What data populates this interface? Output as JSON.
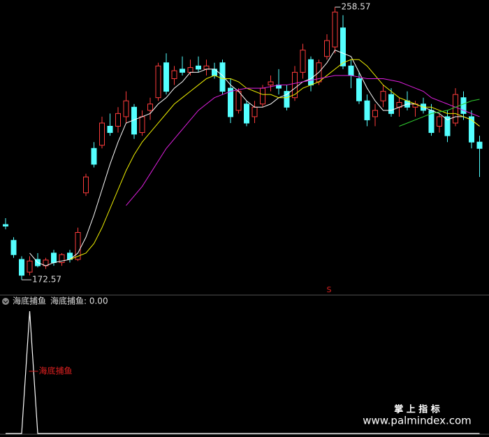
{
  "chart_data": [
    {
      "type": "candlestick",
      "up_color": "#ff3c3c",
      "down_color": "#54ffff",
      "ylim": [
        168.2,
        260.8
      ],
      "open": [
        190,
        185,
        179,
        175,
        179,
        177,
        181,
        178,
        181,
        179,
        200,
        214,
        215,
        221,
        221,
        224,
        227,
        219,
        226,
        230,
        241,
        236,
        239,
        238,
        240,
        239,
        239,
        241,
        233,
        226,
        228,
        224,
        228,
        234,
        234,
        232,
        230,
        238,
        242,
        235,
        243,
        246,
        252,
        240,
        236,
        229,
        224,
        229,
        231,
        227,
        229,
        227,
        228,
        226,
        221,
        224,
        222,
        230,
        224,
        216
      ],
      "high": [
        192,
        186,
        180,
        180,
        181,
        179.5,
        182,
        181,
        182,
        189,
        206,
        216,
        224,
        225,
        227,
        232,
        228,
        226,
        230,
        241,
        244,
        240,
        243,
        242,
        243,
        242,
        241,
        242,
        236,
        233,
        229,
        229,
        234,
        237,
        239,
        234,
        240,
        247,
        243,
        242,
        250,
        258.57,
        256,
        242,
        238,
        231,
        228,
        234,
        233,
        230,
        232,
        229,
        230,
        228,
        225,
        226,
        233,
        232,
        226,
        218
      ],
      "low": [
        188.5,
        179.5,
        172.57,
        174,
        176.5,
        176,
        177,
        177,
        178,
        178.5,
        199,
        208,
        214,
        218,
        219,
        222,
        217,
        218,
        223,
        229,
        231,
        234,
        237,
        237,
        238,
        237,
        236,
        231,
        222,
        225,
        221,
        222,
        227,
        232,
        231,
        226,
        229,
        236,
        232,
        234,
        242,
        244,
        239,
        233,
        228,
        221,
        221,
        227,
        224,
        224,
        226,
        224,
        225,
        218,
        219,
        216,
        221,
        223,
        214,
        205
      ],
      "close": [
        189.5,
        180.5,
        174,
        178.5,
        177,
        178.8,
        178,
        180.5,
        179,
        187.5,
        205,
        209,
        222,
        219,
        225,
        229,
        218.5,
        224,
        228,
        240,
        232,
        238.5,
        238,
        239.5,
        239,
        240,
        237,
        232,
        224,
        232,
        222,
        227,
        233,
        235,
        233,
        227,
        238,
        245,
        234,
        241,
        248,
        257,
        240,
        237,
        229,
        223,
        226,
        232,
        225,
        228.5,
        227,
        228,
        226,
        219,
        224,
        218,
        231,
        225,
        216,
        214
      ],
      "series": [
        {
          "color": "#ffffff",
          "values": [
            null,
            null,
            null,
            181,
            178,
            177,
            178,
            178.5,
            179,
            181,
            186,
            193,
            201,
            209,
            216,
            222,
            223,
            224,
            225,
            228,
            230,
            233,
            235,
            238,
            238,
            239,
            239,
            237,
            234,
            232,
            229,
            227,
            227,
            228,
            230,
            231,
            233,
            235,
            236,
            238,
            241,
            245,
            244,
            243,
            238,
            233,
            229,
            226,
            226,
            227,
            228,
            228,
            227,
            226,
            225,
            223,
            224,
            224,
            223,
            221
          ]
        },
        {
          "color": "#f0f000",
          "values": [
            null,
            null,
            null,
            null,
            null,
            null,
            null,
            null,
            179,
            180,
            181,
            184,
            189,
            195,
            201,
            207,
            212,
            216,
            219,
            222,
            225,
            228,
            230,
            232,
            234,
            236,
            237,
            236,
            236,
            235,
            233,
            232,
            231,
            231,
            230,
            230,
            231,
            233,
            234,
            235,
            237,
            239,
            241,
            242,
            242,
            240,
            237,
            234,
            232,
            230,
            229,
            228,
            227,
            227,
            226,
            225,
            225,
            224,
            223,
            221
          ]
        },
        {
          "color": "#e020e0",
          "values": [
            null,
            null,
            null,
            null,
            null,
            null,
            null,
            null,
            null,
            null,
            null,
            null,
            null,
            null,
            null,
            196,
            199,
            202,
            206,
            210,
            214,
            217,
            220,
            223,
            226,
            228,
            230,
            231,
            232,
            232.5,
            233,
            233,
            233,
            233.5,
            234,
            234,
            234.5,
            235,
            235.5,
            236,
            236.5,
            237,
            237,
            237,
            236.5,
            236,
            236,
            236,
            235.5,
            235,
            234,
            233,
            232,
            230,
            229,
            228,
            227,
            226,
            225,
            224
          ]
        },
        {
          "color": "#30d030",
          "values": [
            null,
            null,
            null,
            null,
            null,
            null,
            null,
            null,
            null,
            null,
            null,
            null,
            null,
            null,
            null,
            null,
            null,
            null,
            null,
            null,
            null,
            null,
            null,
            null,
            null,
            null,
            null,
            null,
            null,
            null,
            null,
            null,
            null,
            null,
            null,
            null,
            null,
            null,
            null,
            null,
            null,
            null,
            null,
            null,
            null,
            null,
            null,
            null,
            null,
            221,
            222,
            223,
            224,
            225,
            225.5,
            226,
            227,
            228,
            229,
            229.5
          ]
        }
      ],
      "max_label": 258.57,
      "min_label": 172.57,
      "signal_label": "S"
    },
    {
      "type": "line",
      "title": "海底捕鱼",
      "legend_label": "海底捕鱼: 0.00",
      "ylim": [
        0,
        1
      ],
      "series": [
        {
          "name": "海底捕鱼",
          "color": "#ffffff",
          "label_color": "#e02020",
          "values": [
            0,
            0,
            0,
            1,
            0,
            0,
            0,
            0,
            0,
            0,
            0,
            0,
            0,
            0,
            0,
            0,
            0,
            0,
            0,
            0,
            0,
            0,
            0,
            0,
            0,
            0,
            0,
            0,
            0,
            0,
            0,
            0,
            0,
            0,
            0,
            0,
            0,
            0,
            0,
            0,
            0,
            0,
            0,
            0,
            0,
            0,
            0,
            0,
            0,
            0,
            0,
            0,
            0,
            0,
            0,
            0,
            0,
            0,
            0,
            0
          ]
        }
      ]
    }
  ],
  "watermark": {
    "title": "掌 上 指 标",
    "url": "www.palmindex.com"
  }
}
